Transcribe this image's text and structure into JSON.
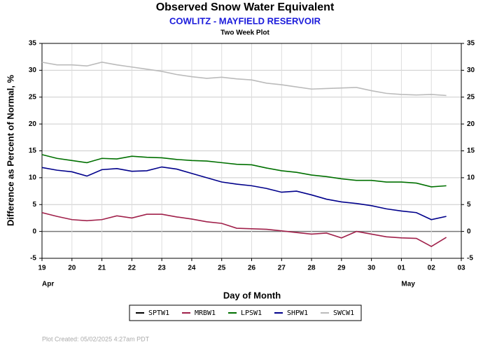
{
  "chart_data": {
    "type": "line",
    "title": "Observed Snow Water Equivalent",
    "subtitle": "COWLITZ - MAYFIELD RESERVOIR",
    "plot_label": "Two Week Plot",
    "y_label": "Difference as Percent of Normal, %",
    "x_label": "Day of Month",
    "footer": "Plot Created: 05/02/2025 4:27am PDT",
    "month_labels": [
      {
        "text": "Apr",
        "x": 0
      },
      {
        "text": "May",
        "x": 12
      }
    ],
    "x": [
      0,
      0.5,
      1,
      1.5,
      2,
      2.5,
      3,
      3.5,
      4,
      4.5,
      5,
      5.5,
      6,
      6.5,
      7,
      7.5,
      8,
      8.5,
      9,
      9.5,
      10,
      10.5,
      11,
      11.5,
      12,
      12.5,
      13,
      13.5
    ],
    "xlim": [
      0,
      14
    ],
    "xticks": [
      {
        "value": 0,
        "label": "19"
      },
      {
        "value": 1,
        "label": "20"
      },
      {
        "value": 2,
        "label": "21"
      },
      {
        "value": 3,
        "label": "22"
      },
      {
        "value": 4,
        "label": "23"
      },
      {
        "value": 5,
        "label": "24"
      },
      {
        "value": 6,
        "label": "25"
      },
      {
        "value": 7,
        "label": "26"
      },
      {
        "value": 8,
        "label": "27"
      },
      {
        "value": 9,
        "label": "28"
      },
      {
        "value": 10,
        "label": "29"
      },
      {
        "value": 11,
        "label": "30"
      },
      {
        "value": 12,
        "label": "01"
      },
      {
        "value": 13,
        "label": "02"
      },
      {
        "value": 14,
        "label": "03"
      }
    ],
    "ylim": [
      -5,
      35
    ],
    "yticks": [
      -5,
      0,
      5,
      10,
      15,
      20,
      25,
      30,
      35
    ],
    "grid": true,
    "series": [
      {
        "name": "SPTW1",
        "color": "#000000",
        "values": [
          null,
          null,
          null,
          null,
          null,
          null,
          null,
          null,
          null,
          null,
          null,
          null,
          null,
          null,
          null,
          null,
          null,
          null,
          null,
          null,
          null,
          null,
          null,
          null,
          null,
          null,
          null,
          null
        ]
      },
      {
        "name": "MRBW1",
        "color": "#a0204a",
        "values": [
          3.5,
          2.8,
          2.2,
          2,
          2.2,
          2.9,
          2.5,
          3.2,
          3.2,
          2.7,
          2.3,
          1.8,
          1.5,
          0.6,
          0.5,
          0.4,
          0.1,
          -0.2,
          -0.5,
          -0.3,
          -1.2,
          0,
          -0.5,
          -1,
          -1.2,
          -1.3,
          -2.8,
          -1.1
        ]
      },
      {
        "name": "LPSW1",
        "color": "#007000",
        "values": [
          14.3,
          13.6,
          13.2,
          12.8,
          13.6,
          13.5,
          14,
          13.8,
          13.7,
          13.4,
          13.2,
          13.1,
          12.8,
          12.5,
          12.4,
          11.8,
          11.3,
          11,
          10.5,
          10.2,
          9.8,
          9.5,
          9.5,
          9.2,
          9.2,
          9,
          8.3,
          8.5
        ]
      },
      {
        "name": "SHPW1",
        "color": "#00008b",
        "values": [
          11.9,
          11.4,
          11.1,
          10.3,
          11.5,
          11.7,
          11.2,
          11.3,
          12,
          11.6,
          10.8,
          10,
          9.2,
          8.8,
          8.5,
          8,
          7.3,
          7.5,
          6.8,
          6,
          5.5,
          5.2,
          4.8,
          4.2,
          3.8,
          3.5,
          2.2,
          2.8
        ]
      },
      {
        "name": "SWCW1",
        "color": "#bbbbbb",
        "values": [
          31.5,
          31,
          31,
          30.8,
          31.5,
          31,
          30.6,
          30.2,
          29.8,
          29.2,
          28.8,
          28.5,
          28.7,
          28.4,
          28.2,
          27.6,
          27.3,
          26.9,
          26.5,
          26.6,
          26.7,
          26.8,
          26.2,
          25.7,
          25.5,
          25.4,
          25.5,
          25.3
        ]
      }
    ]
  }
}
